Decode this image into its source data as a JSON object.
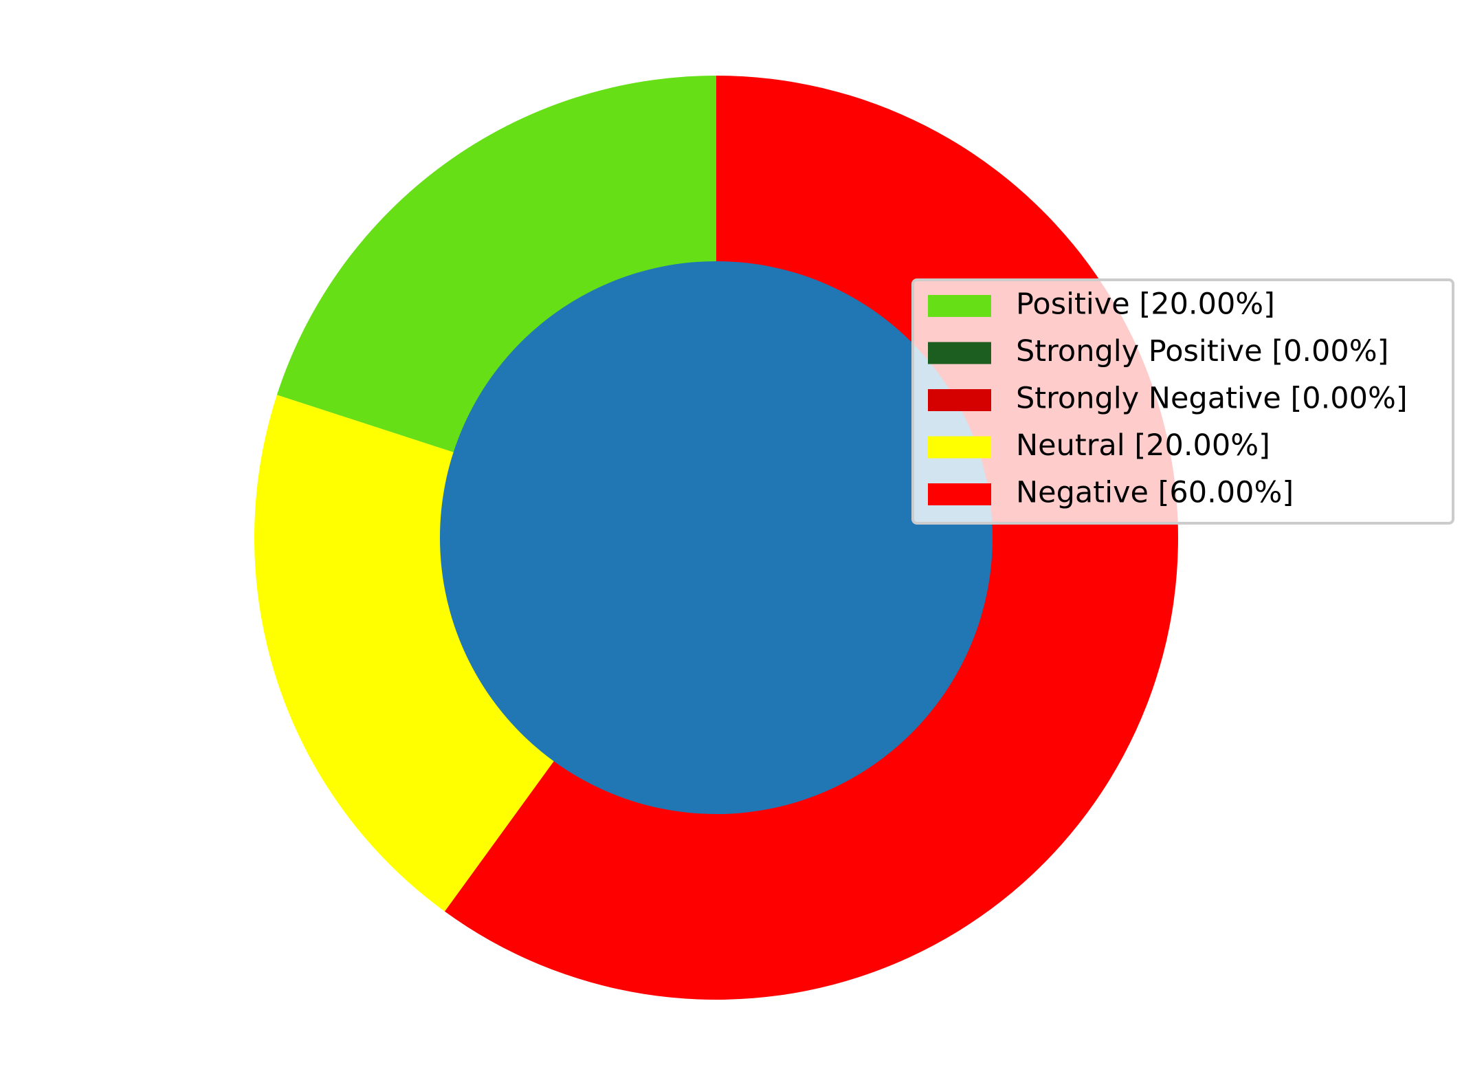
{
  "chart_data": {
    "type": "pie",
    "variant": "donut",
    "categories": [
      "Positive",
      "Strongly Positive",
      "Strongly Negative",
      "Neutral",
      "Negative"
    ],
    "values": [
      20.0,
      0.0,
      0.0,
      20.0,
      60.0
    ],
    "colors": [
      "#66df16",
      "#1b5e20",
      "#d50000",
      "#ffff00",
      "#ff0000"
    ],
    "center_color": "#2077b4",
    "start_angle_deg": 90,
    "direction": "counterclockwise",
    "legend": {
      "placement": "right",
      "entries": [
        "Positive [20.00%]",
        "Strongly Positive [0.00%]",
        "Strongly Negative [0.00%]",
        "Neutral [20.00%]",
        "Negative [60.00%]"
      ]
    },
    "title": ""
  }
}
